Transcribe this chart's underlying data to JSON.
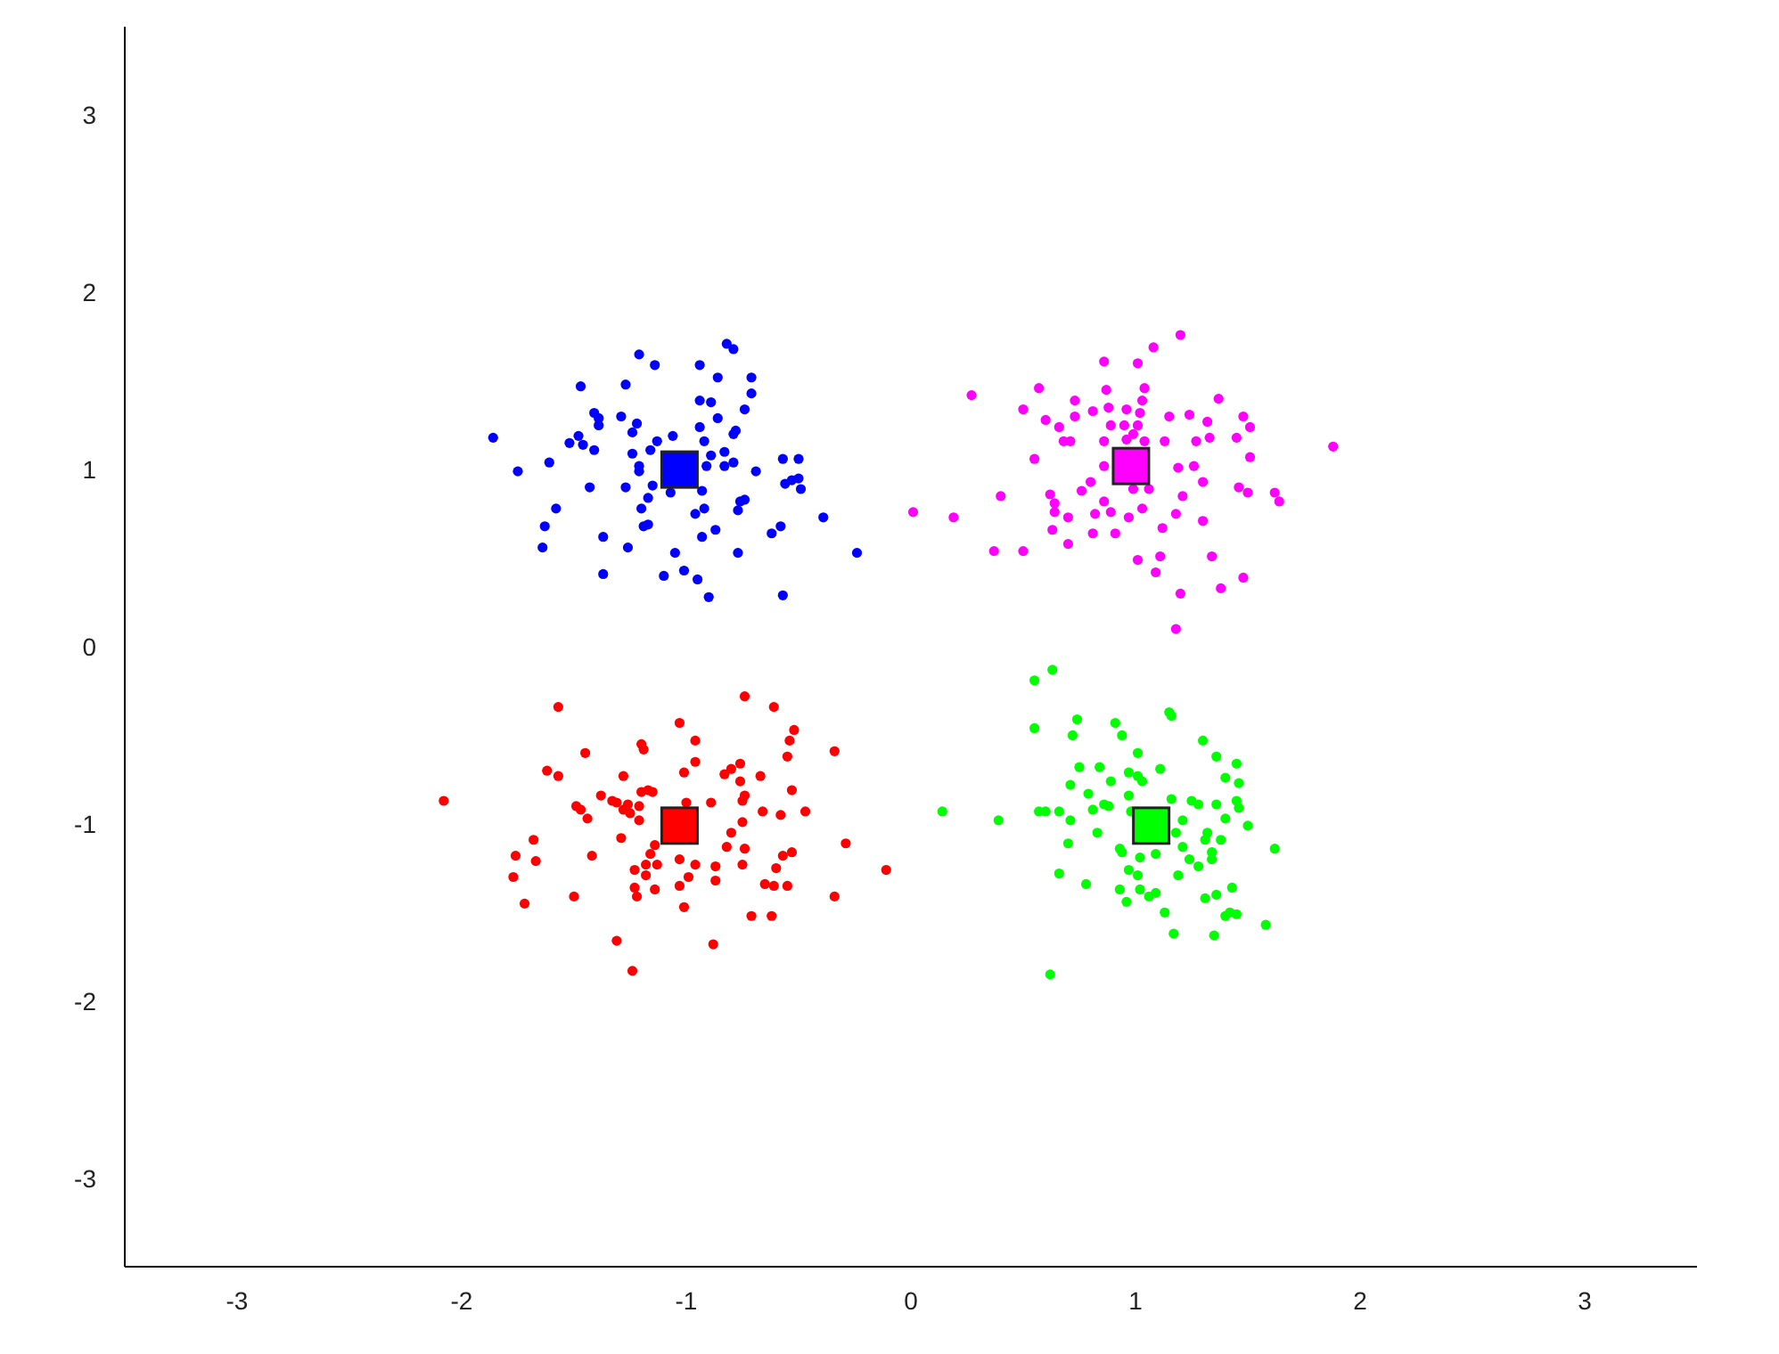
{
  "chart_data": {
    "type": "scatter",
    "xlim": [
      -3.5,
      3.5
    ],
    "ylim": [
      -3.5,
      3.5
    ],
    "xticks": [
      -3,
      -2,
      -1,
      0,
      1,
      2,
      3
    ],
    "yticks": [
      -3,
      -2,
      -1,
      0,
      1,
      2,
      3
    ],
    "grid": false,
    "legend": false,
    "series": [
      {
        "color": "#0000ff",
        "marker": "circle",
        "x": [
          -1.86,
          -1.75,
          -1.61,
          -1.64,
          -1.63,
          -1.58,
          -1.52,
          -1.48,
          -1.46,
          -1.47,
          -1.41,
          -1.39,
          -1.39,
          -1.41,
          -1.43,
          -1.37,
          -1.37,
          -1.27,
          -1.29,
          -1.27,
          -1.26,
          -1.24,
          -1.22,
          -1.24,
          -1.21,
          -1.21,
          -1.21,
          -1.14,
          -1.17,
          -1.2,
          -1.19,
          -1.17,
          -1.15,
          -1.13,
          -1.16,
          -1.06,
          -1.07,
          -1.05,
          -1.1,
          -1.01,
          -0.95,
          -0.9,
          -0.94,
          -0.94,
          -0.89,
          -0.86,
          -0.86,
          -0.94,
          -0.92,
          -0.89,
          -0.91,
          -0.93,
          -0.96,
          -0.92,
          -0.93,
          -0.87,
          -0.83,
          -0.83,
          -0.79,
          -0.78,
          -0.74,
          -0.71,
          -0.71,
          -0.82,
          -0.79,
          -0.79,
          -0.69,
          -0.77,
          -0.76,
          -0.74,
          -0.77,
          -0.62,
          -0.58,
          -0.57,
          -0.5,
          -0.56,
          -0.53,
          -0.5,
          -0.49,
          -0.39,
          -0.24,
          -0.57
        ],
        "values": [
          1.18,
          0.99,
          1.04,
          0.56,
          0.68,
          0.78,
          1.15,
          1.19,
          1.14,
          1.47,
          1.32,
          1.29,
          1.25,
          1.11,
          0.9,
          0.62,
          0.41,
          1.48,
          1.3,
          0.9,
          0.56,
          1.21,
          1.26,
          1.09,
          1.02,
          0.99,
          1.65,
          1.59,
          0.84,
          0.78,
          0.68,
          0.69,
          0.91,
          1.16,
          1.11,
          1.19,
          0.87,
          0.53,
          0.4,
          0.43,
          0.38,
          0.28,
          1.59,
          1.39,
          1.38,
          1.52,
          1.29,
          1.24,
          1.16,
          1.08,
          1.02,
          0.88,
          0.75,
          0.78,
          0.62,
          0.66,
          1.1,
          1.02,
          1.2,
          1.22,
          1.34,
          1.43,
          1.52,
          1.71,
          1.68,
          1.04,
          0.99,
          0.77,
          0.82,
          0.83,
          0.53,
          0.64,
          0.68,
          1.06,
          1.06,
          0.92,
          0.94,
          0.95,
          0.89,
          0.73,
          0.53,
          0.29
        ]
      },
      {
        "color": "#ff00ff",
        "marker": "circle",
        "x": [
          0.01,
          0.19,
          0.27,
          0.4,
          0.37,
          0.5,
          0.5,
          0.55,
          0.57,
          0.6,
          0.66,
          0.68,
          0.71,
          0.62,
          0.64,
          0.64,
          0.63,
          0.7,
          0.7,
          0.73,
          0.73,
          0.76,
          0.8,
          0.81,
          0.82,
          0.81,
          0.86,
          0.87,
          0.88,
          0.89,
          0.86,
          0.86,
          0.86,
          0.89,
          0.91,
          0.96,
          0.95,
          0.96,
          1.01,
          1.04,
          1.03,
          1.02,
          1.01,
          0.99,
          1.04,
          1.06,
          0.99,
          1.03,
          0.97,
          1.01,
          1.09,
          1.11,
          1.12,
          1.08,
          1.2,
          1.13,
          1.15,
          1.19,
          1.21,
          1.18,
          1.2,
          1.18,
          1.24,
          1.27,
          1.26,
          1.3,
          1.3,
          1.32,
          1.33,
          1.37,
          1.34,
          1.38,
          1.45,
          1.48,
          1.51,
          1.51,
          1.46,
          1.5,
          1.48,
          1.62,
          1.64,
          1.88
        ],
        "values": [
          0.76,
          0.73,
          1.42,
          0.85,
          0.54,
          0.54,
          1.34,
          1.06,
          1.46,
          1.28,
          1.24,
          1.16,
          1.16,
          0.86,
          0.81,
          0.76,
          0.66,
          0.73,
          0.58,
          1.39,
          1.3,
          0.88,
          0.93,
          1.33,
          0.75,
          0.64,
          1.61,
          1.45,
          1.35,
          1.25,
          1.16,
          1.02,
          0.82,
          0.76,
          0.64,
          1.34,
          1.25,
          1.17,
          1.6,
          1.46,
          1.39,
          1.32,
          1.25,
          1.2,
          1.16,
          0.89,
          0.89,
          0.78,
          0.73,
          0.49,
          0.42,
          0.51,
          0.67,
          1.69,
          1.76,
          1.16,
          1.3,
          1.01,
          0.85,
          0.75,
          0.3,
          0.1,
          1.31,
          1.16,
          1.02,
          0.93,
          0.71,
          1.27,
          1.18,
          1.4,
          0.51,
          0.33,
          1.18,
          1.3,
          1.24,
          1.07,
          0.9,
          0.87,
          0.39,
          0.87,
          0.82,
          1.13
        ]
      },
      {
        "color": "#ff0000",
        "marker": "circle",
        "x": [
          -2.08,
          -1.77,
          -1.76,
          -1.72,
          -1.68,
          -1.67,
          -1.57,
          -1.62,
          -1.57,
          -1.5,
          -1.49,
          -1.47,
          -1.44,
          -1.45,
          -1.42,
          -1.38,
          -1.33,
          -1.31,
          -1.29,
          -1.31,
          -1.24,
          -1.28,
          -1.28,
          -1.26,
          -1.25,
          -1.21,
          -1.21,
          -1.2,
          -1.17,
          -1.15,
          -1.2,
          -1.19,
          -1.23,
          -1.18,
          -1.16,
          -1.14,
          -1.13,
          -1.18,
          -1.23,
          -1.22,
          -1.14,
          -1.03,
          -1.01,
          -0.96,
          -0.96,
          -1.0,
          -1.03,
          -0.96,
          -0.99,
          -1.03,
          -1.01,
          -0.88,
          -0.89,
          -0.87,
          -0.87,
          -0.82,
          -0.8,
          -0.83,
          -0.8,
          -0.76,
          -0.76,
          -0.75,
          -0.74,
          -0.75,
          -0.74,
          -0.75,
          -0.74,
          -0.71,
          -0.67,
          -0.66,
          -0.65,
          -0.61,
          -0.62,
          -0.6,
          -0.58,
          -0.61,
          -0.57,
          -0.53,
          -0.55,
          -0.53,
          -0.55,
          -0.54,
          -0.52,
          -0.47,
          -0.34,
          -0.29,
          -0.34,
          -0.11
        ],
        "values": [
          -0.87,
          -1.3,
          -1.18,
          -1.45,
          -1.09,
          -1.21,
          -0.34,
          -0.7,
          -0.73,
          -1.41,
          -0.9,
          -0.92,
          -0.97,
          -0.6,
          -1.18,
          -0.84,
          -0.87,
          -0.88,
          -1.08,
          -1.66,
          -1.83,
          -0.73,
          -0.92,
          -0.89,
          -0.94,
          -0.9,
          -0.98,
          -0.82,
          -0.81,
          -0.82,
          -0.55,
          -0.58,
          -1.26,
          -1.23,
          -1.17,
          -1.12,
          -1.23,
          -1.29,
          -1.36,
          -1.41,
          -1.37,
          -0.43,
          -0.71,
          -0.53,
          -0.65,
          -0.88,
          -1.2,
          -1.23,
          -1.3,
          -1.35,
          -1.47,
          -1.68,
          -0.88,
          -1.24,
          -1.32,
          -1.13,
          -1.05,
          -0.72,
          -0.69,
          -0.66,
          -0.76,
          -0.87,
          -0.84,
          -0.99,
          -1.14,
          -1.23,
          -0.28,
          -1.52,
          -0.73,
          -0.93,
          -1.34,
          -1.35,
          -1.52,
          -1.25,
          -0.95,
          -0.34,
          -1.18,
          -1.16,
          -1.35,
          -0.81,
          -0.62,
          -0.53,
          -0.47,
          -0.93,
          -0.59,
          -1.11,
          -1.41,
          -1.26
        ]
      },
      {
        "color": "#00ff00",
        "marker": "circle",
        "x": [
          0.14,
          0.39,
          0.55,
          0.63,
          0.55,
          0.57,
          0.6,
          0.66,
          0.71,
          0.7,
          0.66,
          0.62,
          0.74,
          0.72,
          0.75,
          0.71,
          0.79,
          0.81,
          0.78,
          0.83,
          0.84,
          0.86,
          0.88,
          0.89,
          0.91,
          0.94,
          0.93,
          0.94,
          0.93,
          0.96,
          0.97,
          1.01,
          1.01,
          1.03,
          0.97,
          0.98,
          0.97,
          1.01,
          1.02,
          1.06,
          1.09,
          1.02,
          1.09,
          1.11,
          1.15,
          1.16,
          1.16,
          1.18,
          1.21,
          1.21,
          1.13,
          1.17,
          1.19,
          1.24,
          1.25,
          1.28,
          1.28,
          1.3,
          1.31,
          1.32,
          1.34,
          1.34,
          1.31,
          1.36,
          1.36,
          1.36,
          1.38,
          1.35,
          1.4,
          1.4,
          1.4,
          1.43,
          1.42,
          1.45,
          1.45,
          1.46,
          1.45,
          1.46,
          1.5,
          1.58,
          1.62
        ],
        "values": [
          -0.93,
          -0.98,
          -0.19,
          -0.13,
          -0.46,
          -0.93,
          -0.93,
          -0.93,
          -0.98,
          -1.11,
          -1.28,
          -1.85,
          -0.41,
          -0.5,
          -0.68,
          -0.78,
          -0.83,
          -0.92,
          -1.34,
          -1.05,
          -0.68,
          -0.89,
          -0.9,
          -0.76,
          -0.43,
          -0.5,
          -1.14,
          -1.16,
          -1.37,
          -1.44,
          -0.71,
          -0.6,
          -0.73,
          -0.76,
          -0.84,
          -0.93,
          -1.26,
          -1.29,
          -1.37,
          -1.41,
          -1.39,
          -1.19,
          -1.17,
          -0.69,
          -0.37,
          -0.39,
          -0.86,
          -1.05,
          -0.98,
          -1.13,
          -1.5,
          -1.62,
          -1.29,
          -1.2,
          -0.87,
          -0.89,
          -1.24,
          -0.53,
          -1.09,
          -1.05,
          -1.16,
          -1.2,
          -1.42,
          -1.4,
          -0.89,
          -0.62,
          -1.09,
          -1.63,
          -0.74,
          -0.97,
          -1.52,
          -1.36,
          -1.5,
          -1.51,
          -0.66,
          -0.77,
          -0.87,
          -0.91,
          -1.01,
          -1.57,
          -1.14
        ]
      },
      {
        "color": "#0000ff",
        "marker": "square",
        "x": [
          -1.03
        ],
        "values": [
          1.0
        ]
      },
      {
        "color": "#ff00ff",
        "marker": "square",
        "x": [
          0.98
        ],
        "values": [
          1.02
        ]
      },
      {
        "color": "#ff0000",
        "marker": "square",
        "x": [
          -1.03
        ],
        "values": [
          -1.01
        ]
      },
      {
        "color": "#00ff00",
        "marker": "square",
        "x": [
          1.07
        ],
        "values": [
          -1.01
        ]
      }
    ]
  }
}
